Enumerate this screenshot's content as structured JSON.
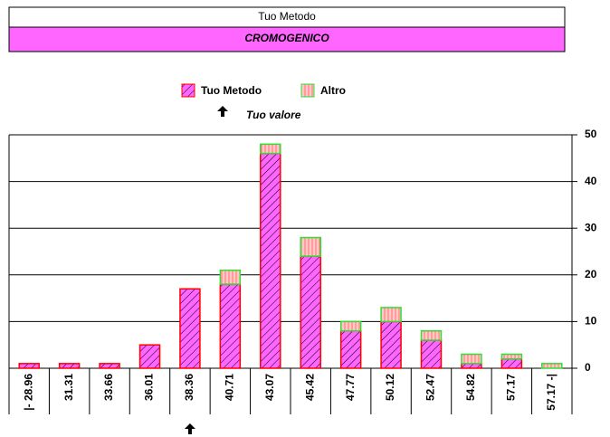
{
  "chart_data": {
    "type": "bar",
    "title": "Tuo Metodo",
    "subtitle": "CROMOGENICO",
    "annotation": "Tuo valore",
    "marker_index": 4,
    "categories": [
      "|- 28.96",
      "31.31",
      "33.66",
      "36.01",
      "38.36",
      "40.71",
      "43.07",
      "45.42",
      "47.77",
      "50.12",
      "52.47",
      "54.82",
      "57.17",
      "57.17 -|"
    ],
    "series": [
      {
        "name": "Tuo Metodo",
        "color": "#ff66ff",
        "values": [
          1,
          1,
          1,
          5,
          17,
          18,
          46,
          24,
          8,
          10,
          6,
          1,
          2,
          0
        ]
      },
      {
        "name": "Altro",
        "color": "#ffb6c1",
        "values": [
          0,
          0,
          0,
          0,
          0,
          3,
          2,
          4,
          2,
          3,
          2,
          2,
          1,
          1
        ]
      }
    ],
    "ylim": [
      0,
      50
    ],
    "yticks": [
      0,
      10,
      20,
      30,
      40,
      50
    ],
    "grid": true
  }
}
